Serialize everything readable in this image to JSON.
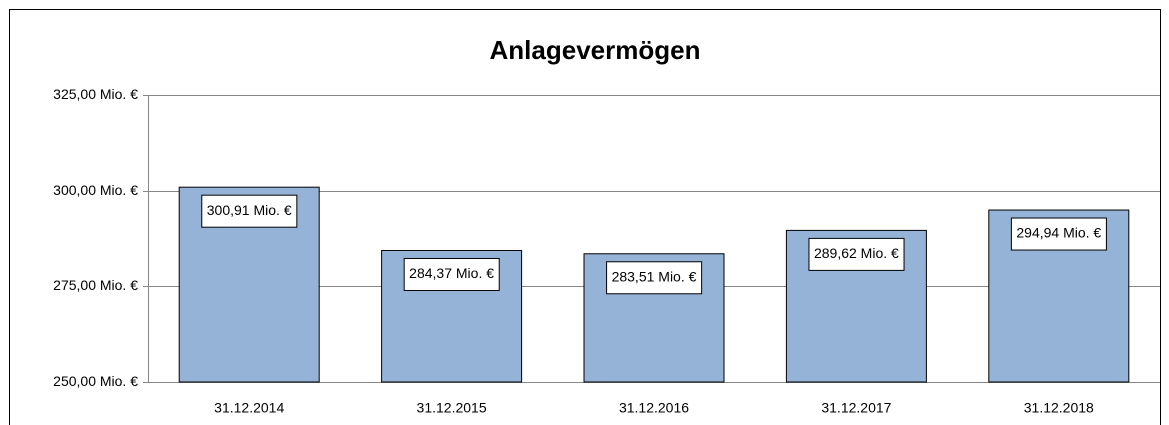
{
  "chart_data": {
    "type": "bar",
    "title": "Anlagevermögen",
    "categories": [
      "31.12.2014",
      "31.12.2015",
      "31.12.2016",
      "31.12.2017",
      "31.12.2018"
    ],
    "values": [
      300.91,
      284.37,
      283.51,
      289.62,
      294.94
    ],
    "value_labels": [
      "300,91 Mio. €",
      "284,37 Mio. €",
      "283,51 Mio. €",
      "289,62 Mio. €",
      "294,94 Mio. €"
    ],
    "color": "#95b3d7",
    "ylim": [
      250,
      325
    ],
    "yticks": [
      {
        "value": 250,
        "label": "250,00 Mio. €"
      },
      {
        "value": 275,
        "label": "275,00 Mio. €"
      },
      {
        "value": 300,
        "label": "300,00 Mio. €"
      },
      {
        "value": 325,
        "label": "325,00 Mio. €"
      }
    ],
    "grid": true
  }
}
